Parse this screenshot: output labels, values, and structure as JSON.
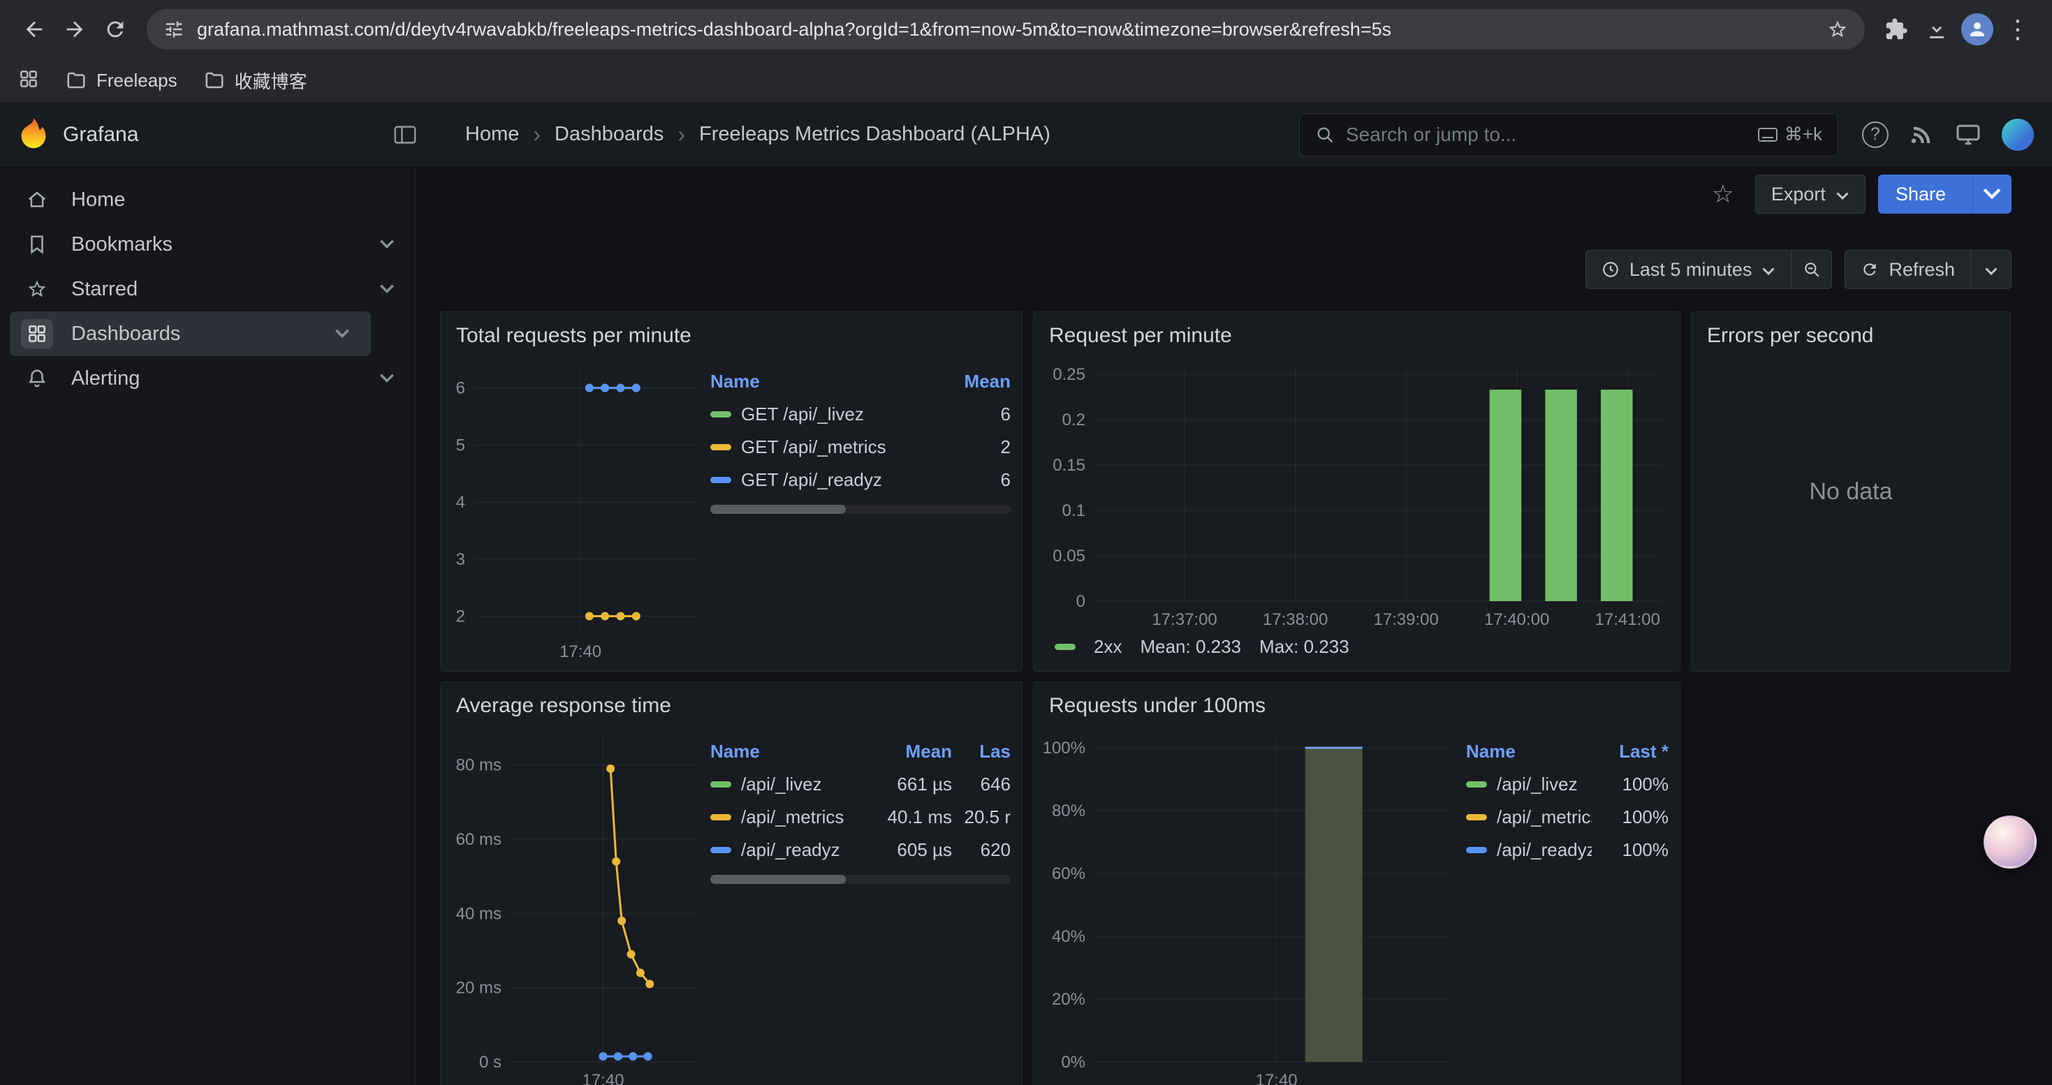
{
  "browser": {
    "url": "grafana.mathmast.com/d/deytv4rwavabkb/freeleaps-metrics-dashboard-alpha?orgId=1&from=now-5m&to=now&timezone=browser&refresh=5s",
    "bookmarks": [
      "Freeleaps",
      "收藏博客"
    ]
  },
  "nav": {
    "brand": "Grafana",
    "breadcrumbs": [
      "Home",
      "Dashboards",
      "Freeleaps Metrics Dashboard (ALPHA)"
    ],
    "search_placeholder": "Search or jump to...",
    "search_shortcut": "⌘+k"
  },
  "sidebar": {
    "items": [
      {
        "label": "Home"
      },
      {
        "label": "Bookmarks"
      },
      {
        "label": "Starred"
      },
      {
        "label": "Dashboards"
      },
      {
        "label": "Alerting"
      }
    ]
  },
  "controls": {
    "export_label": "Export",
    "share_label": "Share",
    "time_range": "Last 5 minutes",
    "refresh_label": "Refresh"
  },
  "accent": {
    "primary": "#3D71D9",
    "link": "#6E9FFF"
  },
  "chart_data": [
    {
      "type": "line",
      "title": "Total requests per minute",
      "ylim": [
        1.7,
        6.4
      ],
      "yticks": [
        {
          "label": "6",
          "v": 6
        },
        {
          "label": "5",
          "v": 5
        },
        {
          "label": "4",
          "v": 4
        },
        {
          "label": "3",
          "v": 3
        },
        {
          "label": "2",
          "v": 2
        }
      ],
      "xticks": [
        {
          "label": "17:40",
          "pos": 0.48
        }
      ],
      "series": [
        {
          "name": "GET /api/_livez",
          "color": "#73BF69",
          "mean": "6",
          "points": [
            [
              0.52,
              6
            ],
            [
              0.59,
              6
            ],
            [
              0.66,
              6
            ],
            [
              0.73,
              6
            ]
          ]
        },
        {
          "name": "GET /api/_metrics",
          "color": "#EAB839",
          "mean": "2",
          "points": [
            [
              0.52,
              2
            ],
            [
              0.59,
              2
            ],
            [
              0.66,
              2
            ],
            [
              0.73,
              2
            ]
          ]
        },
        {
          "name": "GET /api/_readyz",
          "color": "#5794F2",
          "mean": "6",
          "points": [
            [
              0.52,
              6
            ],
            [
              0.59,
              6
            ],
            [
              0.66,
              6
            ],
            [
              0.73,
              6
            ]
          ]
        }
      ],
      "legend": {
        "columns": [
          "Name",
          "Mean"
        ]
      }
    },
    {
      "type": "bar",
      "title": "Request per minute",
      "ylim": [
        0,
        0.26
      ],
      "yticks": [
        {
          "label": "0.25",
          "v": 0.25
        },
        {
          "label": "0.2",
          "v": 0.2
        },
        {
          "label": "0.15",
          "v": 0.15
        },
        {
          "label": "0.1",
          "v": 0.1
        },
        {
          "label": "0.05",
          "v": 0.05
        },
        {
          "label": "0",
          "v": 0
        }
      ],
      "xticks": [
        {
          "label": "17:37:00",
          "pos": 0.16
        },
        {
          "label": "17:38:00",
          "pos": 0.355
        },
        {
          "label": "17:39:00",
          "pos": 0.55
        },
        {
          "label": "17:40:00",
          "pos": 0.745
        },
        {
          "label": "17:41:00",
          "pos": 0.94
        }
      ],
      "bars": {
        "color": "#73BF69",
        "width": 0.056,
        "values": [
          {
            "x": 0.725,
            "v": 0.233
          },
          {
            "x": 0.823,
            "v": 0.233
          },
          {
            "x": 0.921,
            "v": 0.233
          }
        ]
      },
      "legend": {
        "label": "2xx",
        "color": "#73BF69",
        "mean": "Mean: 0.233",
        "max": "Max: 0.233"
      }
    },
    {
      "type": "nodata",
      "title": "Errors per second",
      "message": "No data"
    },
    {
      "type": "line",
      "title": "Average response time",
      "ylim": [
        0,
        88
      ],
      "yticks": [
        {
          "label": "80 ms",
          "v": 80
        },
        {
          "label": "60 ms",
          "v": 60
        },
        {
          "label": "40 ms",
          "v": 40
        },
        {
          "label": "20 ms",
          "v": 20
        },
        {
          "label": "0 s",
          "v": 0
        }
      ],
      "xticks": [
        {
          "label": "17:40",
          "pos": 0.5
        }
      ],
      "series": [
        {
          "name": "/api/_livez",
          "color": "#73BF69",
          "mean": "661 µs",
          "last": "646",
          "points": [
            [
              0.5,
              1.5
            ],
            [
              0.58,
              1.5
            ],
            [
              0.66,
              1.5
            ],
            [
              0.74,
              1.5
            ]
          ]
        },
        {
          "name": "/api/_metrics",
          "color": "#EAB839",
          "mean": "40.1 ms",
          "last": "20.5 r",
          "points": [
            [
              0.54,
              79
            ],
            [
              0.57,
              54
            ],
            [
              0.6,
              38
            ],
            [
              0.65,
              29
            ],
            [
              0.7,
              24
            ],
            [
              0.75,
              21
            ]
          ]
        },
        {
          "name": "/api/_readyz",
          "color": "#5794F2",
          "mean": "605 µs",
          "last": "620",
          "points": [
            [
              0.5,
              1.5
            ],
            [
              0.58,
              1.5
            ],
            [
              0.66,
              1.5
            ],
            [
              0.74,
              1.5
            ]
          ]
        }
      ],
      "legend": {
        "columns": [
          "Name",
          "Mean",
          "Las"
        ]
      }
    },
    {
      "type": "bar",
      "title": "Requests under 100ms",
      "ylim": [
        0,
        104
      ],
      "yticks": [
        {
          "label": "100%",
          "v": 100
        },
        {
          "label": "80%",
          "v": 80
        },
        {
          "label": "60%",
          "v": 60
        },
        {
          "label": "40%",
          "v": 40
        },
        {
          "label": "20%",
          "v": 20
        },
        {
          "label": "0%",
          "v": 0
        }
      ],
      "xticks": [
        {
          "label": "17:40",
          "pos": 0.51
        }
      ],
      "bars": {
        "color": "#49523F",
        "stroke": "#6D9EEB",
        "width": 0.16,
        "values": [
          {
            "x": 0.67,
            "v": 100
          }
        ]
      },
      "series": [
        {
          "name": "/api/_livez",
          "color": "#73BF69",
          "last": "100%"
        },
        {
          "name": "/api/_metrics",
          "color": "#EAB839",
          "last": "100%"
        },
        {
          "name": "/api/_readyz",
          "color": "#5794F2",
          "last": "100%"
        }
      ],
      "legend": {
        "columns": [
          "Name",
          "Last *"
        ]
      }
    }
  ]
}
